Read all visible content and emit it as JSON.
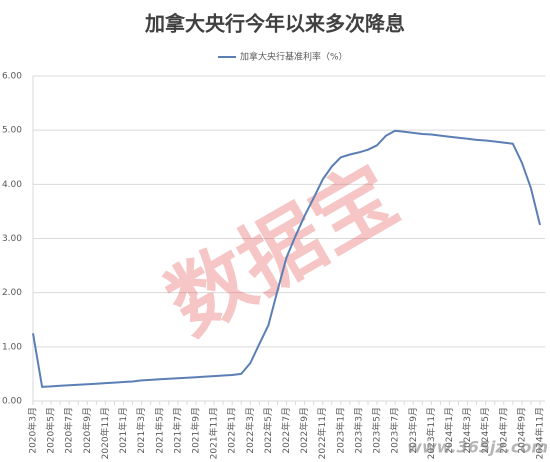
{
  "chart_data": {
    "type": "line",
    "title": "加拿大央行今年以来多次降息",
    "categories": [
      "2020年3月",
      null,
      "2020年5月",
      null,
      "2020年7月",
      null,
      "2020年9月",
      null,
      "2020年11月",
      null,
      "2021年1月",
      null,
      "2021年3月",
      null,
      "2021年5月",
      null,
      "2021年7月",
      null,
      "2021年9月",
      null,
      "2021年11月",
      null,
      "2022年1月",
      null,
      "2022年3月",
      null,
      "2022年5月",
      null,
      "2022年7月",
      null,
      "2022年9月",
      null,
      "2022年11月",
      null,
      "2023年1月",
      null,
      "2023年3月",
      null,
      "2023年5月",
      null,
      "2023年7月",
      null,
      "2023年9月",
      null,
      "2023年11月",
      null,
      "2024年1月",
      null,
      "2024年3月",
      null,
      "2024年5月",
      null,
      "2024年7月",
      null,
      "2024年9月",
      null,
      "2024年11月"
    ],
    "series": [
      {
        "name": "加拿大央行基准利率（%）",
        "color": "#5b7fb5",
        "values": [
          1.25,
          0.26,
          0.27,
          0.28,
          0.29,
          0.3,
          0.31,
          0.32,
          0.33,
          0.34,
          0.35,
          0.36,
          0.38,
          0.39,
          0.4,
          0.41,
          0.42,
          0.43,
          0.44,
          0.45,
          0.46,
          0.47,
          0.48,
          0.5,
          0.7,
          1.05,
          1.4,
          2.03,
          2.65,
          3.05,
          3.42,
          3.75,
          4.09,
          4.33,
          4.5,
          4.55,
          4.59,
          4.64,
          4.72,
          4.9,
          4.99,
          4.97,
          4.95,
          4.93,
          4.92,
          4.9,
          4.88,
          4.86,
          4.84,
          4.82,
          4.81,
          4.79,
          4.77,
          4.75,
          4.4,
          3.93,
          3.25
        ]
      }
    ],
    "ylim": [
      0,
      6
    ],
    "yticks": [
      {
        "value": 0,
        "label": "0.00"
      },
      {
        "value": 1,
        "label": "1.00"
      },
      {
        "value": 2,
        "label": "2.00"
      },
      {
        "value": 3,
        "label": "3.00"
      },
      {
        "value": 4,
        "label": "4.00"
      },
      {
        "value": 5,
        "label": "5.00"
      },
      {
        "value": 6,
        "label": "6.00"
      }
    ],
    "grid": true,
    "legend": "top",
    "watermarks": [
      "数据宝",
      "www.365jz.com"
    ]
  }
}
